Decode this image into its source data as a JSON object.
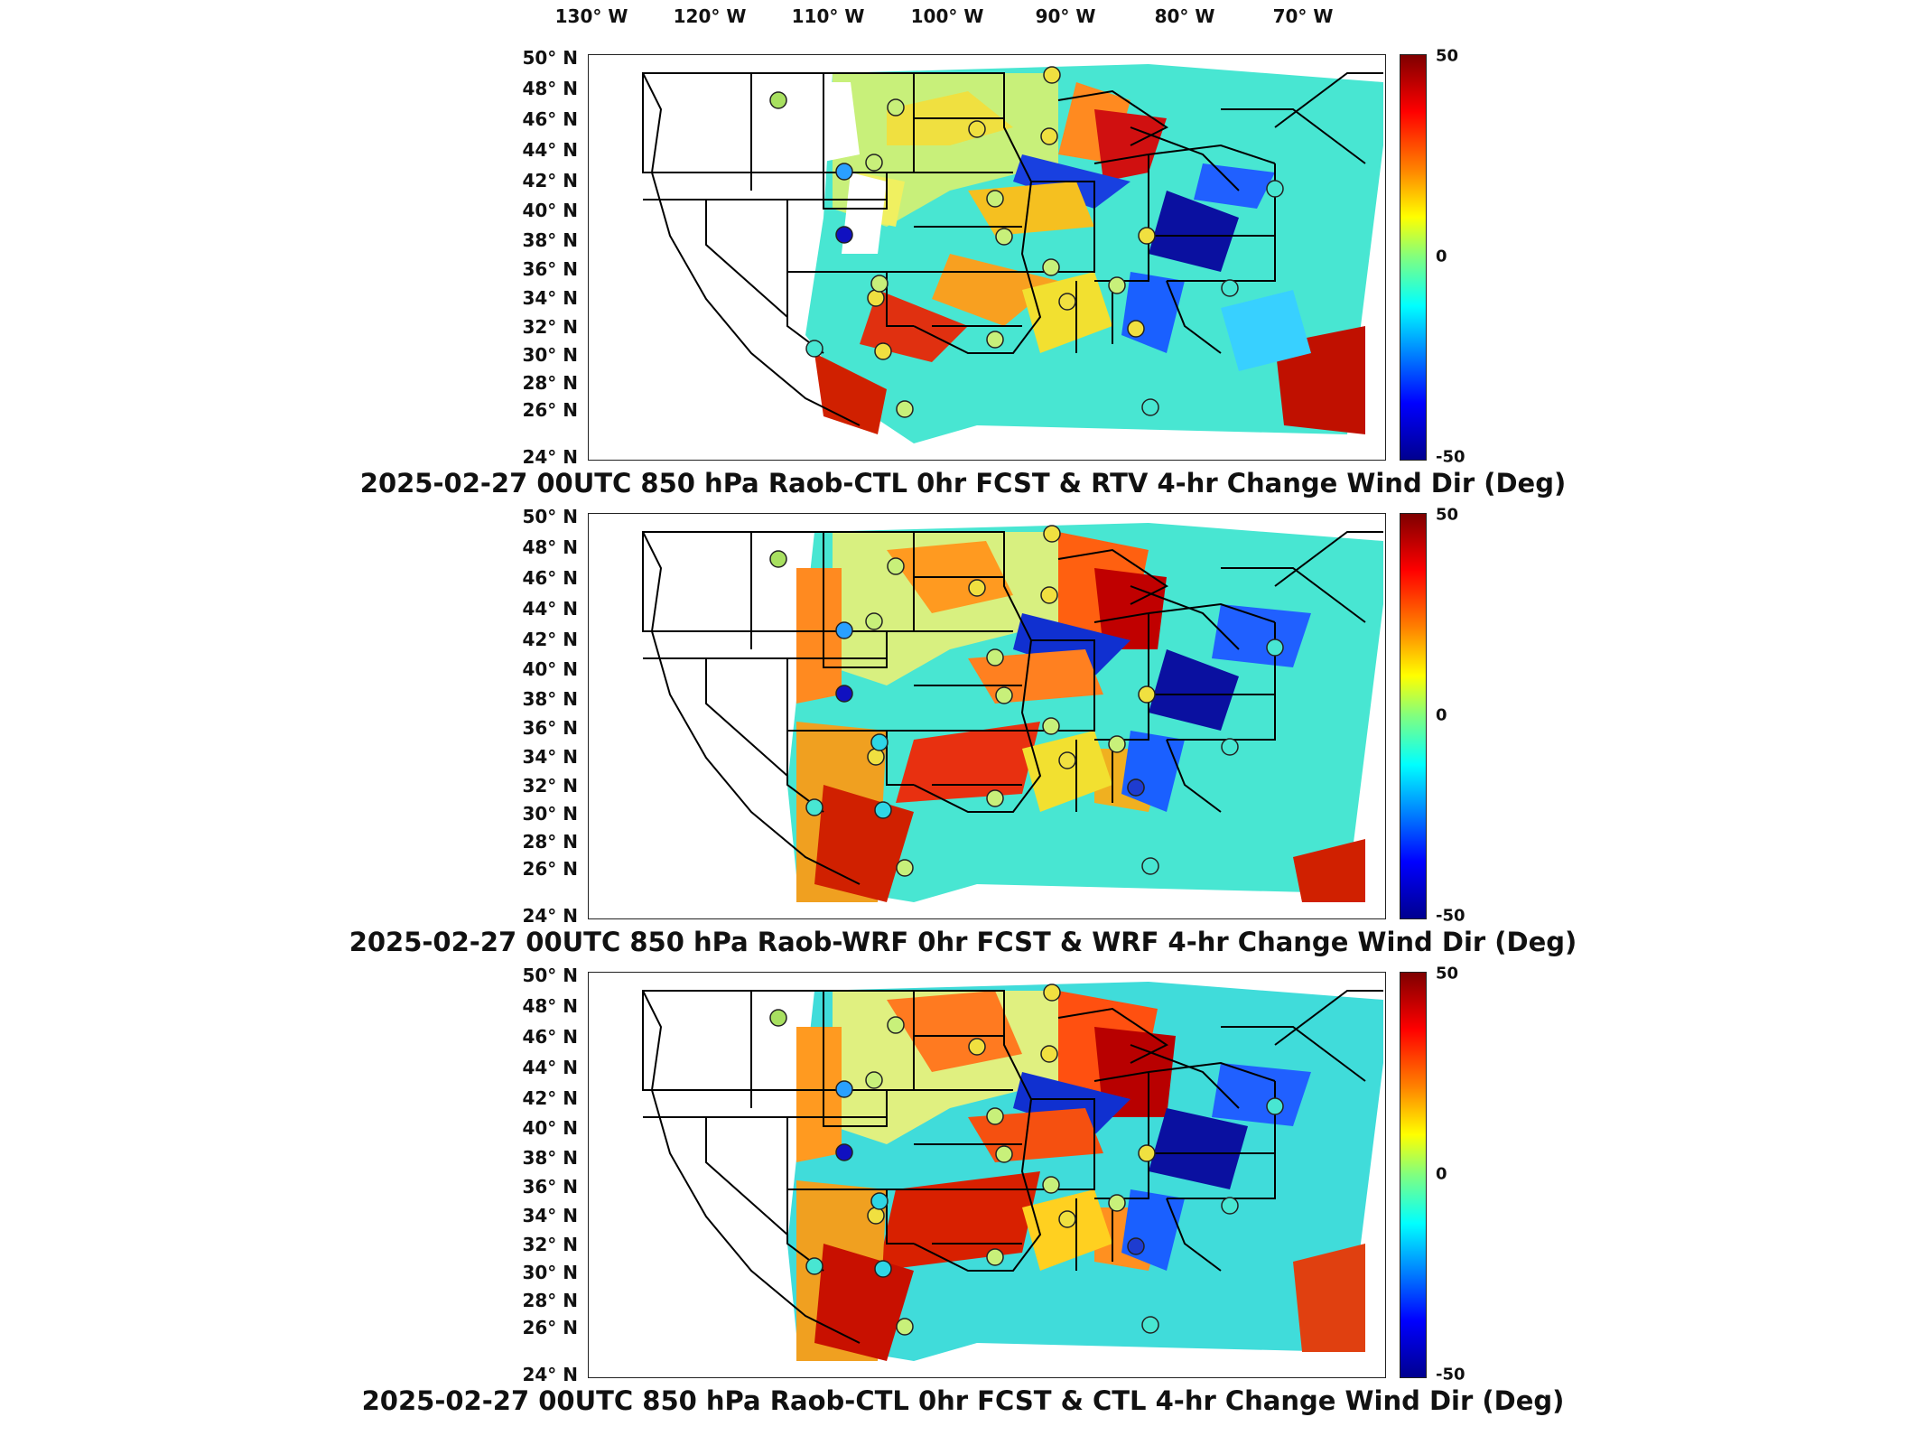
{
  "lon_labels": [
    "130° W",
    "120° W",
    "110° W",
    "100° W",
    "90° W",
    "80° W",
    "70° W"
  ],
  "lat_labels": [
    "50° N",
    "48° N",
    "46° N",
    "44° N",
    "42° N",
    "40° N",
    "38° N",
    "36° N",
    "34° N",
    "32° N",
    "30° N",
    "28° N",
    "26° N",
    "24° N"
  ],
  "colorbar": {
    "max": "50",
    "mid": "0",
    "min": "-50"
  },
  "panels": [
    {
      "title": "2025-02-27 00UTC 850 hPa Raob-CTL 0hr FCST & RTV 4-hr Change Wind Dir (Deg)"
    },
    {
      "title": "2025-02-27 00UTC 850 hPa Raob-WRF 0hr FCST & WRF 4-hr Change Wind Dir (Deg)"
    },
    {
      "title": "2025-02-27 00UTC 850 hPa Raob-CTL 0hr FCST & CTL 4-hr Change Wind Dir (Deg)"
    }
  ],
  "colors": {
    "red": "#c80000",
    "orange": "#ff8c00",
    "yellow": "#f5e600",
    "green": "#7ddc5a",
    "cyan": "#2fd6e6",
    "blue": "#1e5cff",
    "navy": "#0a0aa0"
  }
}
